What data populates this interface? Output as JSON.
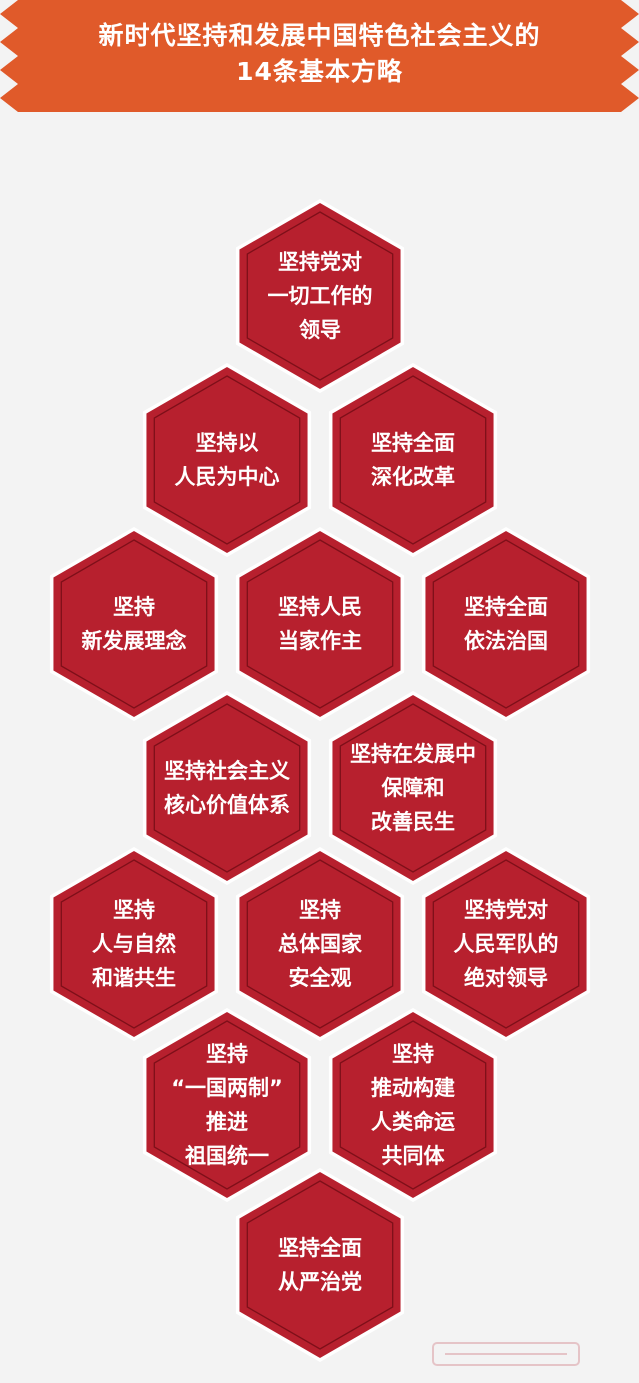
{
  "header": {
    "title_line1": "新时代坚持和发展中国特色社会主义的",
    "title_line2": "14条基本方略"
  },
  "colors": {
    "banner": "#e05a2a",
    "hexagon_fill": "#b7202e",
    "hexagon_outline": "#ffffff",
    "background": "#f3f3f3"
  },
  "strategies": [
    {
      "lines": [
        "坚持党对",
        "一切工作的",
        "领导"
      ]
    },
    {
      "lines": [
        "坚持以",
        "人民为中心"
      ]
    },
    {
      "lines": [
        "坚持全面",
        "深化改革"
      ]
    },
    {
      "lines": [
        "坚持",
        "新发展理念"
      ]
    },
    {
      "lines": [
        "坚持人民",
        "当家作主"
      ]
    },
    {
      "lines": [
        "坚持全面",
        "依法治国"
      ]
    },
    {
      "lines": [
        "坚持社会主义",
        "核心价值体系"
      ]
    },
    {
      "lines": [
        "坚持在发展中",
        "保障和",
        "改善民生"
      ]
    },
    {
      "lines": [
        "坚持",
        "人与自然",
        "和谐共生"
      ]
    },
    {
      "lines": [
        "坚持",
        "总体国家",
        "安全观"
      ]
    },
    {
      "lines": [
        "坚持党对",
        "人民军队的",
        "绝对领导"
      ]
    },
    {
      "lines": [
        "坚持",
        "“一国两制”",
        "推进",
        "祖国统一"
      ]
    },
    {
      "lines": [
        "坚持",
        "推动构建",
        "人类命运",
        "共同体"
      ]
    },
    {
      "lines": [
        "坚持全面",
        "从严治党"
      ]
    }
  ]
}
